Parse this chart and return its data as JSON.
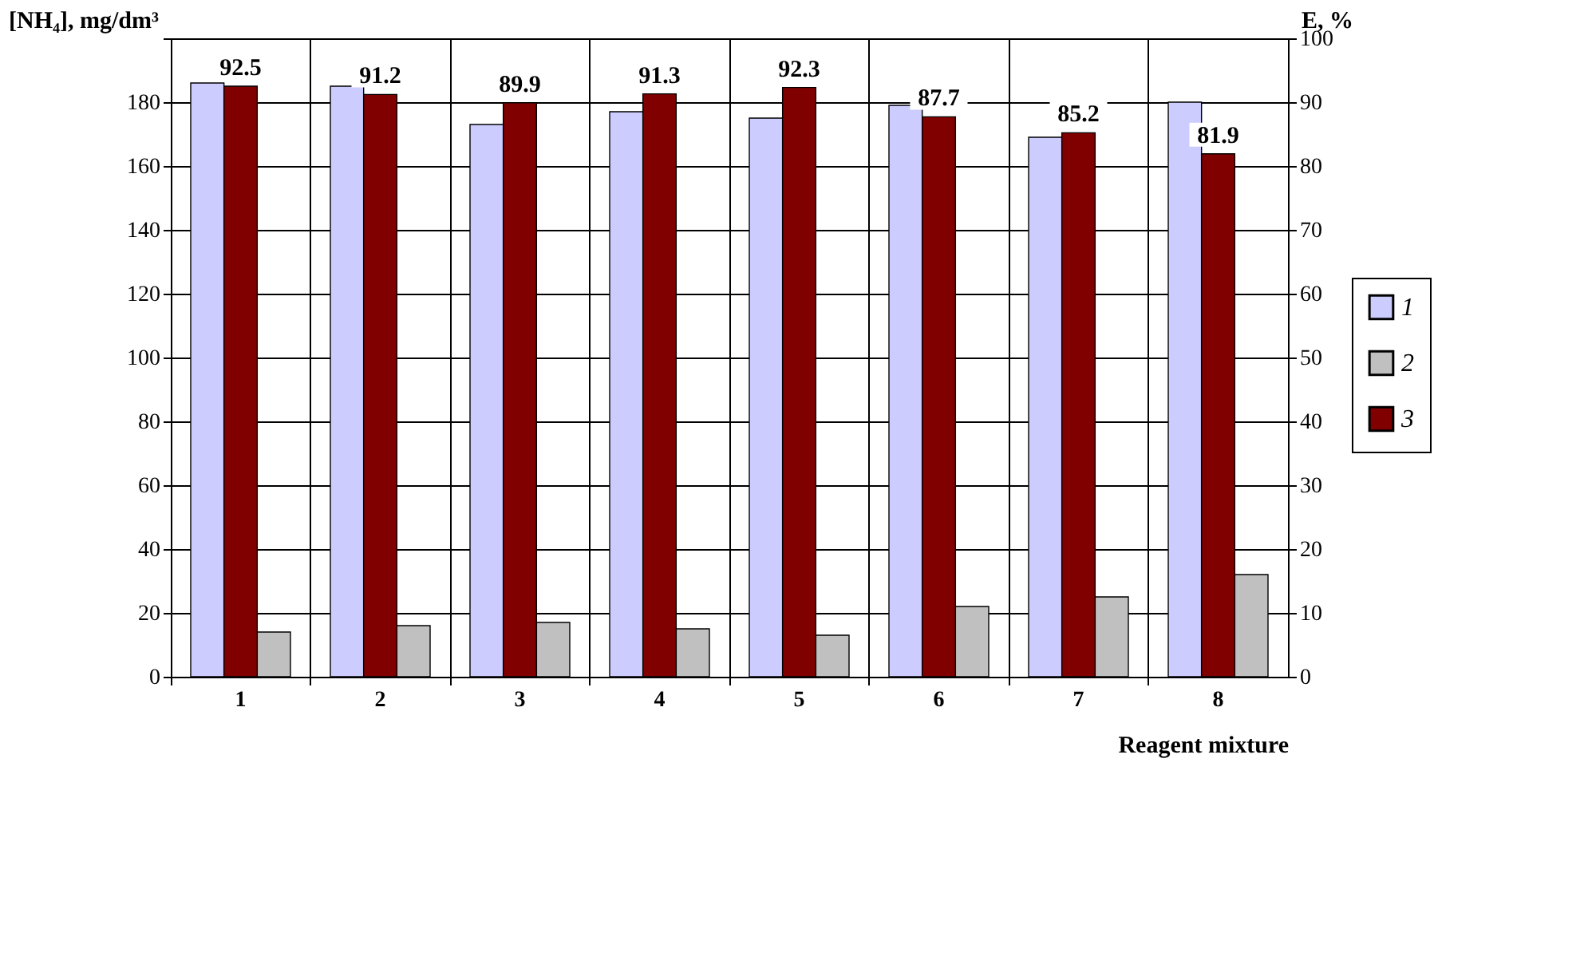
{
  "chart_data": {
    "type": "bar",
    "xlabel": "Reagent mixture",
    "ylabel": "[NH₄], mg/dm³",
    "y2label": "E, %",
    "categories": [
      "1",
      "2",
      "3",
      "4",
      "5",
      "6",
      "7",
      "8"
    ],
    "series": [
      {
        "name": "1",
        "color": "#ccccff",
        "values": [
          186,
          185,
          173,
          177,
          175,
          179,
          169,
          180
        ]
      },
      {
        "name": "2",
        "color": "#c0c0c0",
        "values": [
          14,
          16,
          17,
          15,
          13,
          22,
          25,
          32
        ]
      },
      {
        "name": "3",
        "color": "#800000",
        "axis": "y2",
        "values": [
          92.5,
          91.2,
          89.9,
          91.3,
          92.3,
          87.7,
          85.2,
          81.9
        ],
        "value_labels": [
          "92.5",
          "91.2",
          "89.9",
          "91.3",
          "92.3",
          "87.7",
          "85.2",
          "81.9"
        ]
      }
    ],
    "ylim": [
      0,
      200
    ],
    "yticks": [
      0,
      20,
      40,
      60,
      80,
      100,
      120,
      140,
      160,
      180,
      {
        "value": 200,
        "label": null
      }
    ],
    "y2lim": [
      0,
      100
    ],
    "y2ticks": [
      0,
      10,
      20,
      30,
      40,
      50,
      60,
      70,
      80,
      90,
      100
    ],
    "grid": true,
    "legend": "right"
  }
}
